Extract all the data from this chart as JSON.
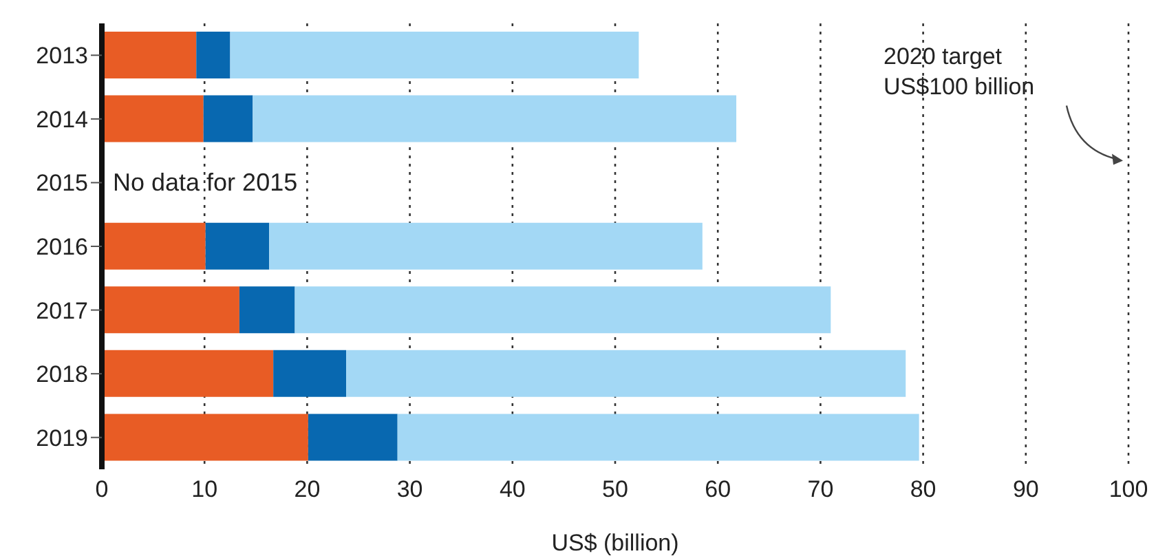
{
  "chart_data": {
    "type": "bar",
    "orientation": "horizontal",
    "stacked": true,
    "xlabel": "US$ (billion)",
    "categories": [
      "2013",
      "2014",
      "2015",
      "2016",
      "2017",
      "2018",
      "2019"
    ],
    "series": [
      {
        "color": "#e85c25",
        "values": [
          9.2,
          9.9,
          null,
          10.1,
          13.4,
          16.7,
          20.1
        ]
      },
      {
        "color": "#0868b0",
        "values": [
          3.3,
          4.8,
          null,
          6.2,
          5.4,
          7.1,
          8.7
        ]
      },
      {
        "color": "#a3d8f5",
        "values": [
          39.8,
          47.1,
          null,
          42.2,
          52.2,
          54.5,
          50.8
        ]
      }
    ],
    "xlim": [
      0,
      100
    ],
    "xticks": [
      0,
      10,
      20,
      30,
      40,
      50,
      60,
      70,
      80,
      90,
      100
    ],
    "grid": "x",
    "legend": false,
    "annotations": [
      "No data for 2015",
      "2020 target\nUS$100 billion"
    ]
  }
}
